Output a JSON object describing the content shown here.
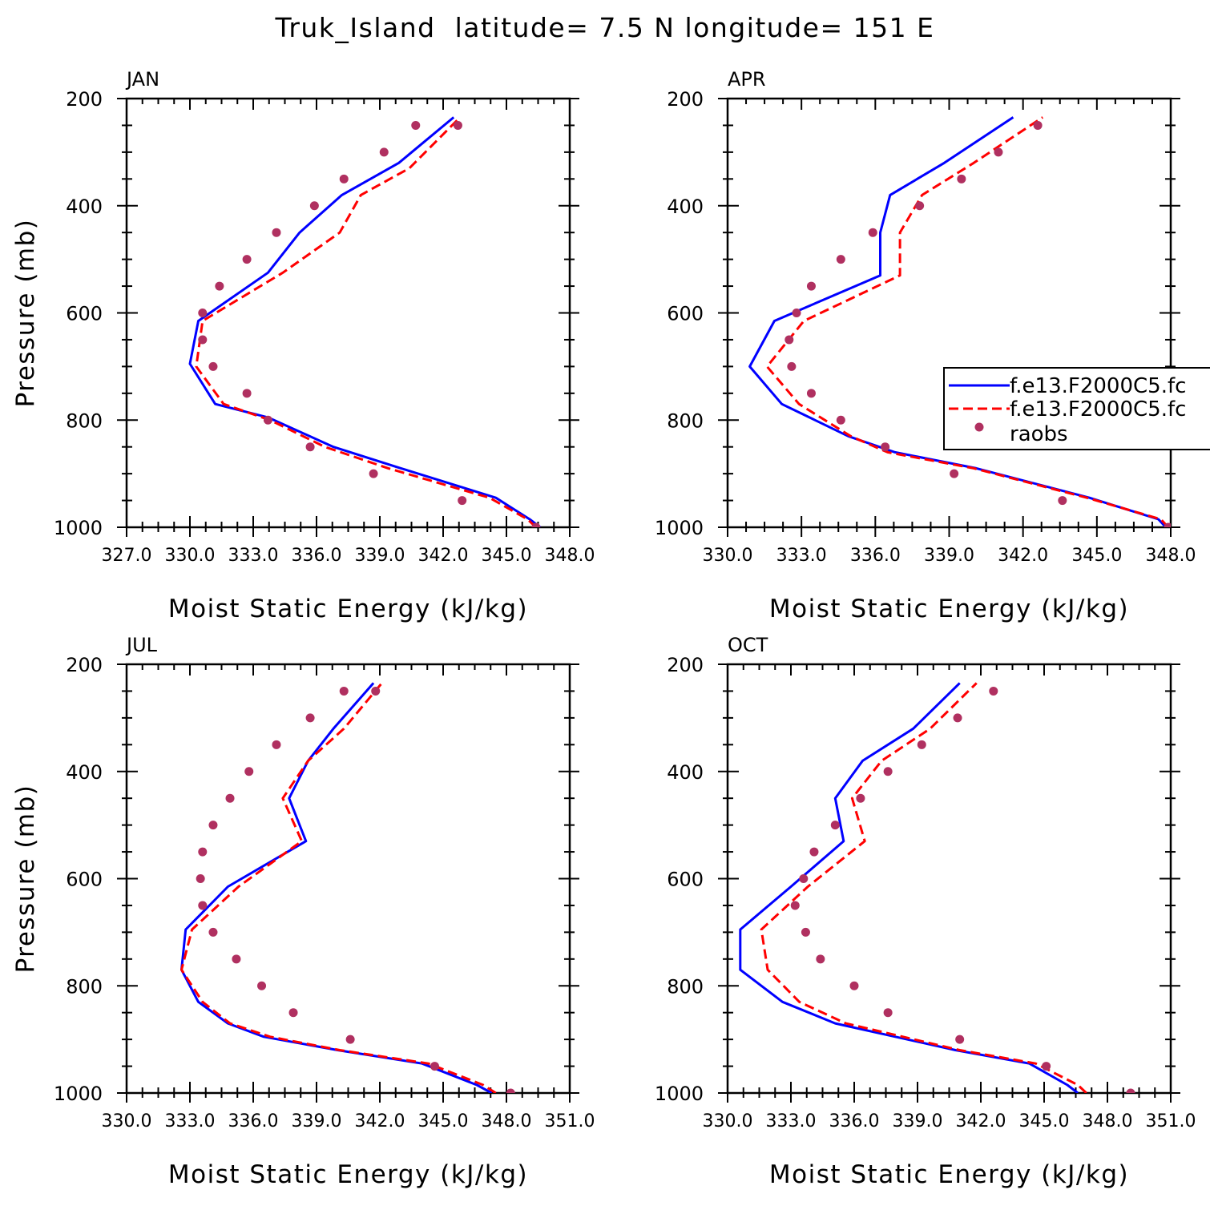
{
  "title": "Truk_Island  latitude= 7.5 N longitude= 151 E",
  "colors": {
    "model1": "#0000ff",
    "model2": "#ff0000",
    "obs": "#b03060",
    "axis": "#000000"
  },
  "legend": {
    "placement": "right-middle of APR panel",
    "entries": [
      "f.e13.F2000C5.fc",
      "f.e13.F2000C5.fc",
      "raobs"
    ]
  },
  "chart_data": [
    {
      "type": "line",
      "panel": "JAN",
      "title": "JAN",
      "xlabel": "Moist Static Energy (kJ/kg)",
      "ylabel": "Pressure (mb)",
      "xlim": [
        327,
        348
      ],
      "ylim": [
        200,
        1000
      ],
      "y_inverted": true,
      "xticks": [
        "327.0",
        "330.0",
        "333.0",
        "336.0",
        "339.0",
        "342.0",
        "345.0",
        "348.0"
      ],
      "yticks": [
        "200",
        "400",
        "600",
        "800",
        "1000"
      ],
      "series": [
        {
          "name": "f.e13.F2000C5.fc",
          "style": "solid",
          "color": "#0000ff",
          "x": [
            346.6,
            346.1,
            344.5,
            340.0,
            336.8,
            333.7,
            331.2,
            330.0,
            330.4,
            333.7,
            335.2,
            337.2,
            339.9,
            342.5
          ],
          "y": [
            1000,
            985,
            945,
            890,
            850,
            795,
            770,
            695,
            615,
            525,
            450,
            380,
            320,
            235
          ]
        },
        {
          "name": "f.e13.F2000C5.fc",
          "style": "dashed",
          "color": "#ff0000",
          "x": [
            346.4,
            346.0,
            344.2,
            339.4,
            336.4,
            333.8,
            331.6,
            330.3,
            330.6,
            334.4,
            337.1,
            338.1,
            340.4,
            342.8
          ],
          "y": [
            1000,
            985,
            945,
            890,
            850,
            800,
            770,
            700,
            615,
            525,
            450,
            380,
            330,
            235
          ]
        },
        {
          "name": "raobs",
          "style": "points",
          "color": "#b03060",
          "x": [
            346.4,
            342.9,
            338.7,
            335.7,
            333.7,
            332.7,
            331.1,
            330.6,
            330.6,
            331.4,
            332.7,
            334.1,
            335.9,
            337.3,
            339.2,
            340.7,
            342.7
          ],
          "y": [
            1000,
            950,
            900,
            850,
            800,
            750,
            700,
            650,
            600,
            550,
            500,
            450,
            400,
            350,
            300,
            250,
            250
          ]
        }
      ]
    },
    {
      "type": "line",
      "panel": "APR",
      "title": "APR",
      "xlabel": "Moist Static Energy (kJ/kg)",
      "ylabel": "",
      "xlim": [
        330,
        348
      ],
      "ylim": [
        200,
        1000
      ],
      "y_inverted": true,
      "xticks": [
        "330.0",
        "333.0",
        "336.0",
        "339.0",
        "342.0",
        "345.0",
        "348.0"
      ],
      "yticks": [
        "200",
        "400",
        "600",
        "800",
        "1000"
      ],
      "series": [
        {
          "name": "f.e13.F2000C5.fc",
          "style": "solid",
          "color": "#0000ff",
          "x": [
            347.8,
            347.5,
            344.7,
            340.1,
            336.8,
            334.9,
            332.2,
            330.9,
            331.9,
            336.2,
            336.2,
            336.6,
            338.8,
            341.6
          ],
          "y": [
            1000,
            985,
            945,
            890,
            860,
            830,
            770,
            700,
            615,
            530,
            450,
            380,
            320,
            235
          ]
        },
        {
          "name": "f.e13.F2000C5.fc",
          "style": "dashed",
          "color": "#ff0000",
          "x": [
            347.9,
            347.6,
            344.6,
            340.0,
            336.5,
            335.0,
            332.9,
            331.6,
            333.1,
            337.0,
            337.0,
            337.9,
            340.0,
            342.8
          ],
          "y": [
            1000,
            985,
            945,
            890,
            860,
            830,
            770,
            700,
            615,
            530,
            450,
            380,
            320,
            235
          ]
        },
        {
          "name": "raobs",
          "style": "points",
          "color": "#b03060",
          "x": [
            347.9,
            343.6,
            339.2,
            336.4,
            334.6,
            333.4,
            332.6,
            332.5,
            332.8,
            333.4,
            334.6,
            335.9,
            337.8,
            339.5,
            341.0,
            342.6
          ],
          "y": [
            1000,
            950,
            900,
            850,
            800,
            750,
            700,
            650,
            600,
            550,
            500,
            450,
            400,
            350,
            300,
            250
          ]
        }
      ]
    },
    {
      "type": "line",
      "panel": "JUL",
      "title": "JUL",
      "xlabel": "Moist Static Energy (kJ/kg)",
      "ylabel": "Pressure (mb)",
      "xlim": [
        330,
        351
      ],
      "ylim": [
        200,
        1000
      ],
      "y_inverted": true,
      "xticks": [
        "330.0",
        "333.0",
        "336.0",
        "339.0",
        "342.0",
        "345.0",
        "348.0",
        "351.0"
      ],
      "yticks": [
        "200",
        "400",
        "600",
        "800",
        "1000"
      ],
      "series": [
        {
          "name": "f.e13.F2000C5.fc",
          "style": "solid",
          "color": "#0000ff",
          "x": [
            347.3,
            346.6,
            344.0,
            340.0,
            336.5,
            334.8,
            333.4,
            332.6,
            332.8,
            334.8,
            338.5,
            337.7,
            338.6,
            339.8,
            341.7
          ],
          "y": [
            1000,
            985,
            945,
            920,
            895,
            870,
            830,
            770,
            695,
            615,
            530,
            450,
            380,
            320,
            235
          ]
        },
        {
          "name": "f.e13.F2000C5.fc",
          "style": "dashed",
          "color": "#ff0000",
          "x": [
            347.5,
            346.9,
            344.3,
            340.1,
            336.8,
            334.9,
            333.6,
            332.6,
            333.1,
            335.3,
            338.3,
            337.4,
            338.6,
            340.3,
            342.1
          ],
          "y": [
            1000,
            985,
            945,
            920,
            895,
            870,
            830,
            770,
            695,
            615,
            530,
            450,
            380,
            320,
            235
          ]
        },
        {
          "name": "raobs",
          "style": "points",
          "color": "#b03060",
          "x": [
            348.2,
            344.6,
            340.6,
            337.9,
            336.4,
            335.2,
            334.1,
            333.6,
            333.5,
            333.6,
            334.1,
            334.9,
            335.8,
            337.1,
            338.7,
            340.3,
            341.8
          ],
          "y": [
            1000,
            950,
            900,
            850,
            800,
            750,
            700,
            650,
            600,
            550,
            500,
            450,
            400,
            350,
            300,
            250,
            250
          ]
        }
      ]
    },
    {
      "type": "line",
      "panel": "OCT",
      "title": "OCT",
      "xlabel": "Moist Static Energy (kJ/kg)",
      "ylabel": "",
      "xlim": [
        330,
        351
      ],
      "ylim": [
        200,
        1000
      ],
      "y_inverted": true,
      "xticks": [
        "330.0",
        "333.0",
        "336.0",
        "339.0",
        "342.0",
        "345.0",
        "348.0",
        "351.0"
      ],
      "yticks": [
        "200",
        "400",
        "600",
        "800",
        "1000"
      ],
      "series": [
        {
          "name": "f.e13.F2000C5.fc",
          "style": "solid",
          "color": "#0000ff",
          "x": [
            346.6,
            346.1,
            344.3,
            340.8,
            335.1,
            332.6,
            330.6,
            330.6,
            333.0,
            335.5,
            335.1,
            336.4,
            338.8,
            341.0
          ],
          "y": [
            1000,
            985,
            945,
            920,
            870,
            830,
            770,
            695,
            615,
            530,
            450,
            380,
            320,
            235
          ]
        },
        {
          "name": "f.e13.F2000C5.fc",
          "style": "dashed",
          "color": "#ff0000",
          "x": [
            347.0,
            346.6,
            344.6,
            341.0,
            335.6,
            333.4,
            331.9,
            331.6,
            333.8,
            336.5,
            335.9,
            337.3,
            339.6,
            341.8
          ],
          "y": [
            1000,
            985,
            945,
            920,
            870,
            830,
            770,
            695,
            615,
            530,
            450,
            380,
            320,
            235
          ]
        },
        {
          "name": "raobs",
          "style": "points",
          "color": "#b03060",
          "x": [
            349.1,
            345.1,
            341.0,
            337.6,
            336.0,
            334.4,
            333.7,
            333.2,
            333.6,
            334.1,
            335.1,
            336.3,
            337.6,
            339.2,
            340.9,
            342.6
          ],
          "y": [
            1000,
            950,
            900,
            850,
            800,
            750,
            700,
            650,
            600,
            550,
            500,
            450,
            400,
            350,
            300,
            250
          ]
        }
      ]
    }
  ]
}
